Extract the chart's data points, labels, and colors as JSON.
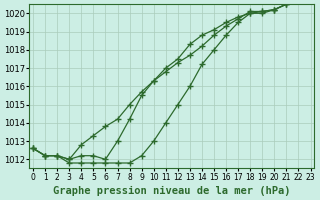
{
  "title": "Graphe pression niveau de la mer (hPa)",
  "xlabel_hours": [
    0,
    1,
    2,
    3,
    4,
    5,
    6,
    7,
    8,
    9,
    10,
    11,
    12,
    13,
    14,
    15,
    16,
    17,
    18,
    19,
    20,
    21,
    22,
    23
  ],
  "line1_upper": [
    1012.6,
    1012.2,
    1012.2,
    1012.0,
    1012.8,
    1013.3,
    1013.8,
    1014.2,
    1015.0,
    1015.7,
    1016.3,
    1016.8,
    1017.3,
    1017.7,
    1018.2,
    1018.8,
    1019.3,
    1019.7,
    1020.1,
    1020.1,
    1020.2,
    1020.5,
    1021.0,
    1021.2
  ],
  "line2_mid": [
    1012.6,
    1012.2,
    1012.2,
    1012.0,
    1012.2,
    1012.2,
    1012.0,
    1013.0,
    1014.2,
    1015.5,
    1016.3,
    1017.0,
    1017.5,
    1018.3,
    1018.8,
    1019.1,
    1019.5,
    1019.8,
    1020.0,
    1020.0,
    1020.2,
    1020.5,
    1021.0,
    1021.2
  ],
  "line3_lower": [
    1012.6,
    1012.2,
    1012.2,
    1011.8,
    1011.8,
    1011.8,
    1011.8,
    1011.8,
    1011.8,
    1012.2,
    1013.0,
    1014.0,
    1015.0,
    1016.0,
    1017.2,
    1018.0,
    1018.8,
    1019.5,
    1020.0,
    1020.1,
    1020.2,
    1020.5,
    1021.0,
    1021.3
  ],
  "line_color": "#2d6a2d",
  "bg_color": "#cceee4",
  "grid_color": "#aaccbb",
  "ylim": [
    1011.5,
    1020.5
  ],
  "yticks": [
    1012,
    1013,
    1014,
    1015,
    1016,
    1017,
    1018,
    1019,
    1020
  ],
  "title_fontsize": 7.5,
  "tick_fontsize": 6,
  "marker": "+",
  "marker_size": 4.0,
  "line_width": 0.9
}
